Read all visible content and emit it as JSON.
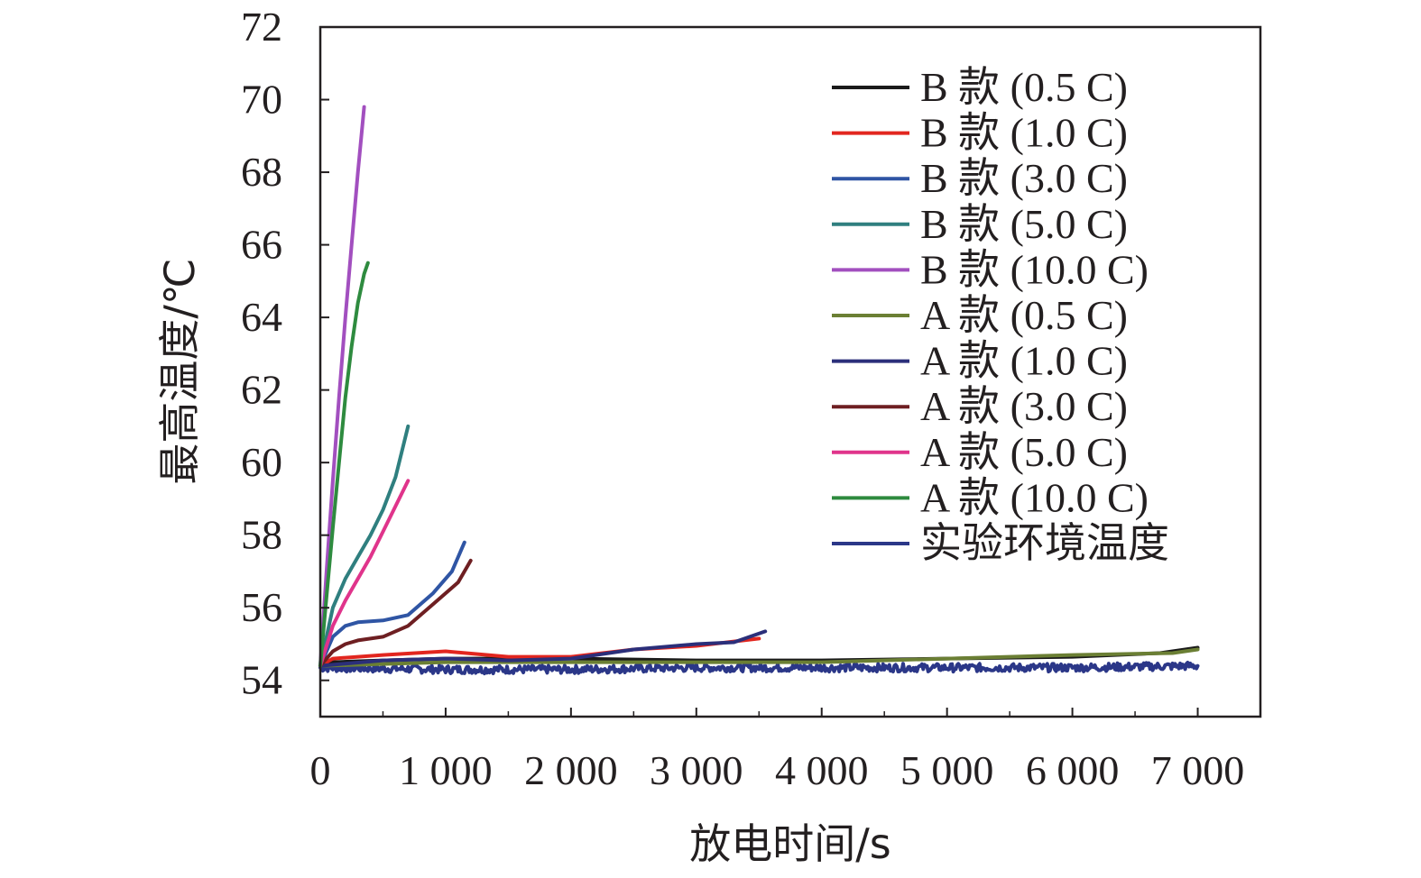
{
  "chart_data": {
    "type": "line",
    "xlabel": "放电时间/s",
    "ylabel": "最高温度/℃",
    "xlim": [
      0,
      7500
    ],
    "ylim": [
      53,
      72
    ],
    "xticks": [
      0,
      1000,
      2000,
      3000,
      4000,
      5000,
      6000,
      7000
    ],
    "xtick_labels": [
      "0",
      "1 000",
      "2 000",
      "3 000",
      "4 000",
      "5 000",
      "6 000",
      "7 000"
    ],
    "yticks": [
      54,
      56,
      58,
      60,
      62,
      64,
      66,
      68,
      70,
      72
    ],
    "ytick_labels": [
      "54",
      "56",
      "58",
      "60",
      "62",
      "64",
      "66",
      "68",
      "70",
      "72"
    ],
    "grid": false,
    "legend_position": "top-right",
    "series": [
      {
        "name": "B 款 (0.5 C)",
        "color": "#1a1a1a",
        "x": [
          0,
          100,
          500,
          1000,
          2000,
          3000,
          4000,
          5000,
          6000,
          6700,
          7000
        ],
        "y": [
          54.4,
          54.5,
          54.55,
          54.6,
          54.6,
          54.55,
          54.55,
          54.6,
          54.65,
          54.75,
          54.9
        ]
      },
      {
        "name": "B 款 (1.0 C)",
        "color": "#e2261f",
        "x": [
          0,
          100,
          500,
          1000,
          1500,
          2000,
          2500,
          3000,
          3500
        ],
        "y": [
          54.4,
          54.6,
          54.7,
          54.8,
          54.65,
          54.65,
          54.85,
          54.95,
          55.15
        ]
      },
      {
        "name": "B 款 (3.0 C)",
        "color": "#2f55a4",
        "x": [
          0,
          100,
          200,
          300,
          500,
          700,
          900,
          1050,
          1150
        ],
        "y": [
          54.4,
          55.2,
          55.5,
          55.6,
          55.65,
          55.8,
          56.4,
          57.0,
          57.8
        ]
      },
      {
        "name": "B 款 (5.0 C)",
        "color": "#2f7f7f",
        "x": [
          0,
          100,
          200,
          300,
          400,
          500,
          600,
          700
        ],
        "y": [
          54.4,
          56.0,
          56.8,
          57.4,
          58.0,
          58.7,
          59.6,
          61.0
        ]
      },
      {
        "name": "B 款 (10.0 C)",
        "color": "#a24fbf",
        "x": [
          0,
          50,
          100,
          150,
          200,
          250,
          300,
          350
        ],
        "y": [
          54.4,
          57.0,
          59.5,
          61.8,
          64.0,
          66.0,
          68.0,
          69.8
        ]
      },
      {
        "name": "A 款 (0.5 C)",
        "color": "#6b7f34",
        "x": [
          0,
          1000,
          2000,
          3000,
          4000,
          5000,
          6000,
          6800,
          7000
        ],
        "y": [
          54.4,
          54.5,
          54.5,
          54.5,
          54.5,
          54.6,
          54.7,
          54.75,
          54.85
        ]
      },
      {
        "name": "A 款 (1.0 C)",
        "color": "#2b2f7a",
        "x": [
          0,
          500,
          1000,
          1500,
          2000,
          2500,
          3000,
          3300,
          3550
        ],
        "y": [
          54.4,
          54.55,
          54.6,
          54.55,
          54.6,
          54.85,
          55.0,
          55.05,
          55.35
        ]
      },
      {
        "name": "A 款 (3.0 C)",
        "color": "#6e1f22",
        "x": [
          0,
          100,
          200,
          300,
          500,
          700,
          900,
          1100,
          1200
        ],
        "y": [
          54.4,
          54.8,
          55.0,
          55.1,
          55.2,
          55.5,
          56.1,
          56.7,
          57.3
        ]
      },
      {
        "name": "A 款 (5.0 C)",
        "color": "#e0348b",
        "x": [
          0,
          100,
          200,
          300,
          400,
          500,
          600,
          700
        ],
        "y": [
          54.4,
          55.5,
          56.2,
          56.8,
          57.4,
          58.1,
          58.8,
          59.5
        ]
      },
      {
        "name": "A 款 (10.0 C)",
        "color": "#2e8b3f",
        "x": [
          0,
          50,
          100,
          150,
          200,
          250,
          300,
          350,
          380
        ],
        "y": [
          54.4,
          56.3,
          58.2,
          60.0,
          61.8,
          63.2,
          64.4,
          65.2,
          65.5
        ]
      },
      {
        "name": "实验环境温度",
        "color": "#2b3788",
        "x": [
          0,
          1000,
          2000,
          3000,
          4000,
          5000,
          6000,
          7000
        ],
        "y": [
          54.35,
          54.3,
          54.3,
          54.35,
          54.35,
          54.35,
          54.35,
          54.4
        ],
        "noisy": true
      }
    ]
  }
}
